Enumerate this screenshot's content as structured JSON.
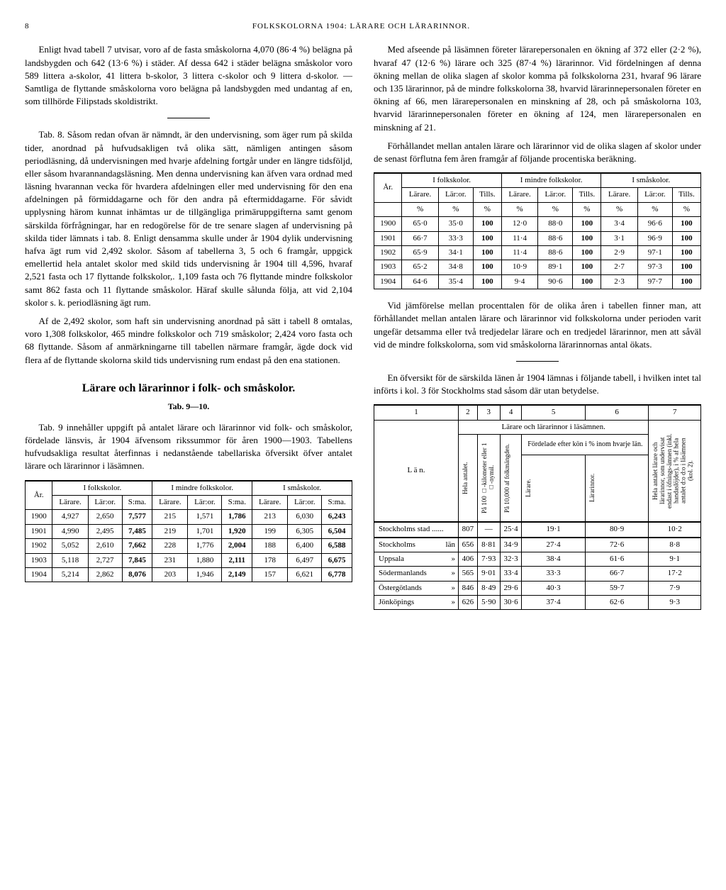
{
  "page_number": "8",
  "header_title": "FOLKSKOLORNA 1904: LÄRARE OCH LÄRARINNOR.",
  "left": {
    "p1": "Enligt hvad tabell 7 utvisar, voro af de fasta småskolorna 4,070 (86·4 %) belägna på landsbygden och 642 (13·6 %) i städer. Af dessa 642 i städer belägna småskolor voro 589 littera a-skolor, 41 littera b-skolor, 3 littera c-skolor och 9 littera d-skolor. — Samtliga de flyttande småskolorna voro belägna på landsbygden med undantag af en, som tillhörde Filipstads skoldistrikt.",
    "tab8_a": "Tab. 8. Såsom redan ofvan är nämndt, är den undervisning, som äger rum på skilda tider, anordnad på hufvudsakligen två olika sätt, nämligen antingen såsom periodläsning, då undervisningen med hvarje afdelning fortgår under en längre tidsföljd, eller såsom hvarannandagsläsning. Men denna undervisning kan äfven vara ordnad med läsning hvarannan vecka för hvardera afdelningen eller med undervisning för den ena afdelningen på förmiddagarne och för den andra på eftermiddagarne. För såvidt upplysning härom kunnat inhämtas ur de tillgängliga primäruppgifterna samt genom särskilda förfrågningar, har en redogörelse för de tre senare slagen af undervisning på skilda tider lämnats i tab. 8. Enligt densamma skulle under år 1904 dylik undervisning hafva ägt rum vid 2,492 skolor. Såsom af tabellerna 3, 5 och 6 framgår, uppgick emellertid hela antalet skolor med skild tids undervisning år 1904 till 4,596, hvaraf 2,521 fasta och 17 flyttande folkskolor,. 1,109 fasta och 76 flyttande mindre folkskolor samt 862 fasta och 11 flyttande småskolor. Häraf skulle sålunda följa, att vid 2,104 skolor s. k. periodläsning ägt rum.",
    "tab8_b": "Af de 2,492 skolor, som haft sin undervisning anordnad på sätt i tabell 8 omtalas, voro 1,308 folkskolor, 465 mindre folkskolor och 719 småskolor; 2,424 voro fasta och 68 flyttande. Såsom af anmärkningarne till tabellen närmare framgår, ägde dock vid flera af de flyttande skolorna skild tids undervisning rum endast på den ena stationen.",
    "section_title": "Lärare och lärarinnor i folk- och småskolor.",
    "subhead": "Tab. 9—10.",
    "tab9_p": "Tab. 9 innehåller uppgift på antalet lärare och lärarinnor vid folk- och småskolor, fördelade länsvis, år 1904 äfvensom rikssummor för åren 1900—1903. Tabellens hufvudsakliga resultat återfinnas i nedanstående tabellariska öfversikt öfver antalet lärare och lärarinnor i läsämnen.",
    "table_bottom": {
      "headers": {
        "ar": "År.",
        "g1": "I folkskolor.",
        "g2": "I mindre folkskolor.",
        "g3": "I småskolor.",
        "larare": "Lärare.",
        "laror": "Lär:or.",
        "sma": "S:ma."
      },
      "rows": [
        {
          "y": "1900",
          "a1": "4,927",
          "a2": "2,650",
          "a3": "7,577",
          "b1": "215",
          "b2": "1,571",
          "b3": "1,786",
          "c1": "213",
          "c2": "6,030",
          "c3": "6,243"
        },
        {
          "y": "1901",
          "a1": "4,990",
          "a2": "2,495",
          "a3": "7,485",
          "b1": "219",
          "b2": "1,701",
          "b3": "1,920",
          "c1": "199",
          "c2": "6,305",
          "c3": "6,504"
        },
        {
          "y": "1902",
          "a1": "5,052",
          "a2": "2,610",
          "a3": "7,662",
          "b1": "228",
          "b2": "1,776",
          "b3": "2,004",
          "c1": "188",
          "c2": "6,400",
          "c3": "6,588"
        },
        {
          "y": "1903",
          "a1": "5,118",
          "a2": "2,727",
          "a3": "7,845",
          "b1": "231",
          "b2": "1,880",
          "b3": "2,111",
          "c1": "178",
          "c2": "6,497",
          "c3": "6,675"
        },
        {
          "y": "1904",
          "a1": "5,214",
          "a2": "2,862",
          "a3": "8,076",
          "b1": "203",
          "b2": "1,946",
          "b3": "2,149",
          "c1": "157",
          "c2": "6,621",
          "c3": "6,778"
        }
      ]
    }
  },
  "right": {
    "p1": "Med afseende på läsämnen företer lärarepersonalen en ökning af 372 eller (2·2 %), hvaraf 47 (12·6 %) lärare och 325 (87·4 %) lärarinnor. Vid fördelningen af denna ökning mellan de olika slagen af skolor komma på folkskolorna 231, hvaraf 96 lärare och 135 lärarinnor, på de mindre folkskolorna 38, hvarvid lärarinnepersonalen företer en ökning af 66, men lärarepersonalen en minskning af 28, och på småskolorna 103, hvarvid lärarinnepersonalen företer en ökning af 124, men lärarepersonalen en minskning af 21.",
    "p2": "Förhållandet mellan antalen lärare och lärarinnor vid de olika slagen af skolor under de senast förflutna fem åren framgår af följande procentiska beräkning.",
    "pct_table": {
      "headers": {
        "ar": "År.",
        "g1": "I folkskolor.",
        "g2": "I mindre folkskolor.",
        "g3": "I småskolor.",
        "larare": "Lärare.",
        "laror": "Lär:or.",
        "tills": "Tills.",
        "pct": "%"
      },
      "rows": [
        {
          "y": "1900",
          "a1": "65·0",
          "a2": "35·0",
          "a3": "100",
          "b1": "12·0",
          "b2": "88·0",
          "b3": "100",
          "c1": "3·4",
          "c2": "96·6",
          "c3": "100"
        },
        {
          "y": "1901",
          "a1": "66·7",
          "a2": "33·3",
          "a3": "100",
          "b1": "11·4",
          "b2": "88·6",
          "b3": "100",
          "c1": "3·1",
          "c2": "96·9",
          "c3": "100"
        },
        {
          "y": "1902",
          "a1": "65·9",
          "a2": "34·1",
          "a3": "100",
          "b1": "11·4",
          "b2": "88·6",
          "b3": "100",
          "c1": "2·9",
          "c2": "97·1",
          "c3": "100"
        },
        {
          "y": "1903",
          "a1": "65·2",
          "a2": "34·8",
          "a3": "100",
          "b1": "10·9",
          "b2": "89·1",
          "b3": "100",
          "c1": "2·7",
          "c2": "97·3",
          "c3": "100"
        },
        {
          "y": "1904",
          "a1": "64·6",
          "a2": "35·4",
          "a3": "100",
          "b1": "9·4",
          "b2": "90·6",
          "b3": "100",
          "c1": "2·3",
          "c2": "97·7",
          "c3": "100"
        }
      ]
    },
    "p3": "Vid jämförelse mellan procenttalen för de olika åren i tabellen finner man, att förhållandet mellan antalen lärare och lärarinnor vid folkskolorna under perioden varit ungefär detsamma eller två tredjedelar lärare och en tredjedel lärarinnor, men att såväl vid de mindre folkskolorna, som vid småskolorna lärarinnornas antal ökats.",
    "p4": "En öfversikt för de särskilda länen år 1904 lämnas i följande tabell, i hvilken intet tal införts i kol. 3 för Stockholms stad såsom där utan betydelse.",
    "lan_table": {
      "col_nums": [
        "1",
        "2",
        "3",
        "4",
        "5",
        "6",
        "7"
      ],
      "super": "Lärare och lärarinnor i läsämnen.",
      "lan": "L ä n.",
      "h2": "Hela antalet.",
      "h3": "På 100 □-kilometer eller 1 □-nymil.",
      "h4": "På 10,000 af folkmängden.",
      "h56": "Fördelade efter kön i % inom hvarje län.",
      "h5": "Lärare.",
      "h6": "Lärarinnor.",
      "h7": "Hela antalet lärare och lärarinnor, som undervisat endast i öfnings-ämnen (inkl. handaslöjder), i % af hela antalet d:o d:o i läsämnen (kol. 2).",
      "rows": [
        {
          "n": "Stockholms stad ......",
          "c2": "807",
          "c3": "—",
          "c4": "25·4",
          "c5": "19·1",
          "c6": "80·9",
          "c7": "10·2"
        },
        {
          "n": "Stockholms",
          "suf": "län",
          "c2": "656",
          "c3": "8·81",
          "c4": "34·9",
          "c5": "27·4",
          "c6": "72·6",
          "c7": "8·8"
        },
        {
          "n": "Uppsala",
          "suf": "»",
          "c2": "406",
          "c3": "7·93",
          "c4": "32·3",
          "c5": "38·4",
          "c6": "61·6",
          "c7": "9·1"
        },
        {
          "n": "Södermanlands",
          "suf": "»",
          "c2": "565",
          "c3": "9·01",
          "c4": "33·4",
          "c5": "33·3",
          "c6": "66·7",
          "c7": "17·2"
        },
        {
          "n": "Östergötlands",
          "suf": "»",
          "c2": "846",
          "c3": "8·49",
          "c4": "29·6",
          "c5": "40·3",
          "c6": "59·7",
          "c7": "7·9"
        },
        {
          "n": "Jönköpings",
          "suf": "»",
          "c2": "626",
          "c3": "5·90",
          "c4": "30·6",
          "c5": "37·4",
          "c6": "62·6",
          "c7": "9·3"
        }
      ]
    }
  }
}
